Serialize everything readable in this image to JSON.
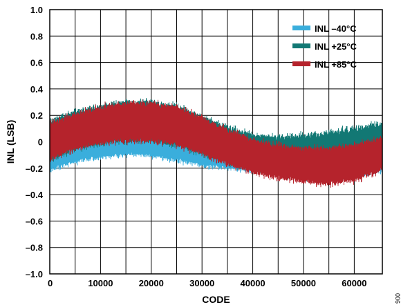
{
  "chart_data": {
    "type": "line",
    "title": "",
    "xlabel": "CODE",
    "ylabel": "INL (LSB)",
    "xlim": [
      0,
      65535
    ],
    "ylim": [
      -1.0,
      1.0
    ],
    "grid": true,
    "legend_position": "top-right",
    "x_ticks": [
      0,
      5000,
      10000,
      15000,
      20000,
      25000,
      30000,
      35000,
      40000,
      45000,
      50000,
      55000,
      60000,
      65535
    ],
    "x_tick_labels": [
      "0",
      "",
      "10000",
      "",
      "20000",
      "",
      "30000",
      "",
      "40000",
      "",
      "50000",
      "",
      "60000",
      ""
    ],
    "y_ticks": [
      1.0,
      0.8,
      0.6,
      0.4,
      0.2,
      0,
      -0.2,
      -0.4,
      -0.6,
      -0.8,
      -1.0
    ],
    "y_tick_labels": [
      "1.0",
      "0.8",
      "0.6",
      "0.4",
      "0.2",
      "0",
      "–0.2",
      "–0.4",
      "–0.6",
      "–0.8",
      "–1.0"
    ],
    "series": [
      {
        "name": "INL –40°C",
        "color": "#3aaedc",
        "x": [
          0,
          5000,
          10000,
          15000,
          20000,
          25000,
          30000,
          35000,
          40000,
          45000,
          50000,
          55000,
          60000,
          65535
        ],
        "upper": [
          0.05,
          0.06,
          0.1,
          0.12,
          0.1,
          0.06,
          0.02,
          -0.04,
          -0.08,
          -0.1,
          -0.12,
          -0.14,
          -0.12,
          -0.06
        ],
        "lower": [
          -0.22,
          -0.16,
          -0.12,
          -0.1,
          -0.11,
          -0.14,
          -0.18,
          -0.2,
          -0.22,
          -0.24,
          -0.26,
          -0.28,
          -0.26,
          -0.22
        ]
      },
      {
        "name": "INL +25°C",
        "color": "#127874",
        "x": [
          0,
          5000,
          10000,
          15000,
          20000,
          25000,
          30000,
          35000,
          40000,
          45000,
          50000,
          55000,
          60000,
          65535
        ],
        "upper": [
          0.16,
          0.24,
          0.28,
          0.31,
          0.31,
          0.28,
          0.2,
          0.12,
          0.06,
          0.04,
          0.06,
          0.08,
          0.11,
          0.15
        ],
        "lower": [
          -0.15,
          -0.06,
          -0.02,
          0.0,
          0.0,
          -0.03,
          -0.1,
          -0.17,
          -0.22,
          -0.25,
          -0.28,
          -0.3,
          -0.26,
          -0.2
        ]
      },
      {
        "name": "INL +85°C",
        "color": "#b5232c",
        "x": [
          0,
          5000,
          10000,
          15000,
          20000,
          25000,
          30000,
          35000,
          40000,
          45000,
          50000,
          55000,
          60000,
          65535
        ],
        "upper": [
          0.14,
          0.22,
          0.27,
          0.3,
          0.3,
          0.27,
          0.19,
          0.1,
          0.02,
          -0.02,
          -0.04,
          -0.04,
          -0.02,
          0.04
        ],
        "lower": [
          -0.14,
          -0.06,
          -0.02,
          0.0,
          0.0,
          -0.03,
          -0.1,
          -0.18,
          -0.24,
          -0.28,
          -0.31,
          -0.33,
          -0.3,
          -0.22
        ]
      }
    ]
  },
  "figure_id": "006"
}
